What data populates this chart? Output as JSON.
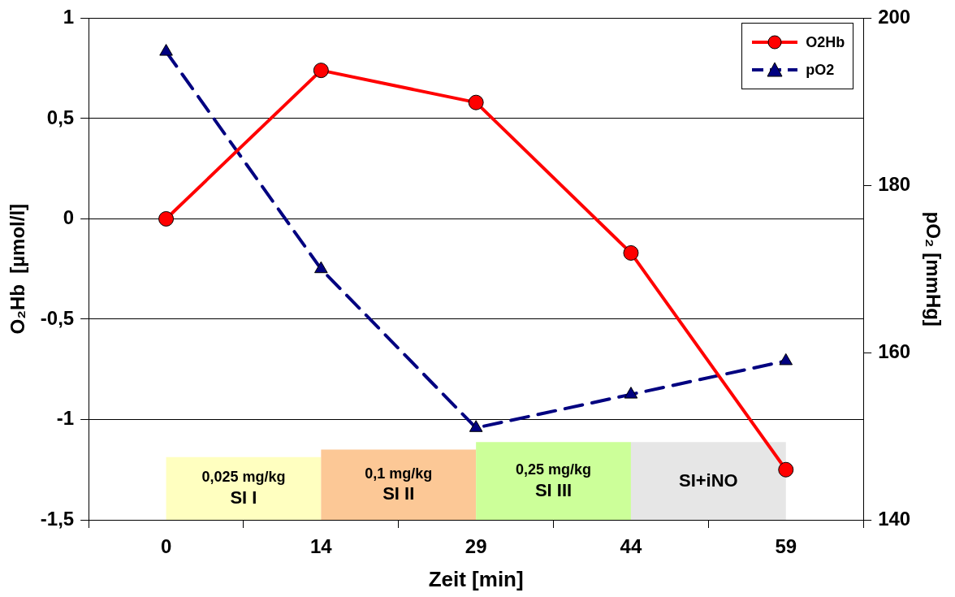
{
  "chart_data": {
    "type": "line",
    "xlabel": "Zeit [min]",
    "ylabel": "O₂Hb  [µmol/l]",
    "y2label": "pO₂ [mmHg]",
    "categories": [
      "0",
      "14",
      "29",
      "44",
      "59"
    ],
    "series": [
      {
        "name": "O2Hb",
        "color": "#ff0000",
        "values": [
          0,
          0.74,
          0.58,
          -0.17,
          -1.25
        ],
        "marker": "circle",
        "line_style": "solid"
      },
      {
        "name": "pO2",
        "color": "#000080",
        "values": [
          196,
          170,
          151,
          155,
          159
        ],
        "axis": "y2",
        "marker": "triangle",
        "line_style": "dashed"
      }
    ],
    "ylim": [
      -1.5,
      1
    ],
    "yticks": [
      {
        "value": -1.5,
        "label": "-1,5"
      },
      -1,
      {
        "value": -0.5,
        "label": "-0,5"
      },
      0,
      {
        "value": 0.5,
        "label": "0,5"
      },
      1
    ],
    "y2lim": [
      140,
      200
    ],
    "y2ticks": [
      140,
      160,
      180,
      200
    ],
    "bands": [
      {
        "axis": "x",
        "from": "0",
        "to": "14",
        "label": "0,025 mg/kg\nSI I",
        "color": "#ffffc0"
      },
      {
        "axis": "x",
        "from": "14",
        "to": "29",
        "label": "0,1 mg/kg\nSI II",
        "color": "#fcc896"
      },
      {
        "axis": "x",
        "from": "29",
        "to": "44",
        "label": "0,25 mg/kg\nSI III",
        "color": "#ccff99"
      },
      {
        "axis": "x",
        "from": "44",
        "to": "59",
        "label": "SI+iNO",
        "color": "#e6e6e6"
      }
    ],
    "grid": "y",
    "legend": "top right"
  }
}
